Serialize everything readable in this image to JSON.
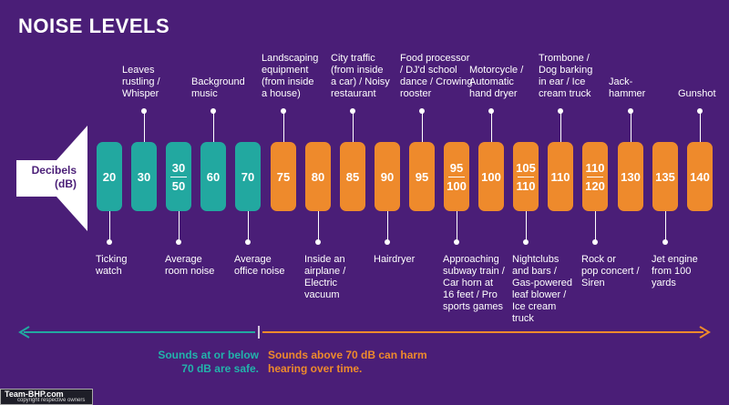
{
  "title": "NOISE LEVELS",
  "speaker_label": "Decibels\n(dB)",
  "colors": {
    "background": "#4a1e77",
    "safe": "#22a8a0",
    "harm": "#ee8a2c",
    "text": "#ffffff"
  },
  "levels": [
    {
      "value": "20",
      "zone": "safe",
      "label": "Ticking\nwatch",
      "label_pos": "bottom"
    },
    {
      "value": "30",
      "zone": "safe",
      "label": "Leaves\nrustling /\nWhisper",
      "label_pos": "top"
    },
    {
      "value": "30/50",
      "zone": "safe",
      "label": "Average\nroom noise",
      "label_pos": "bottom"
    },
    {
      "value": "60",
      "zone": "safe",
      "label": "Background\nmusic",
      "label_pos": "top"
    },
    {
      "value": "70",
      "zone": "safe",
      "label": "Average\noffice noise",
      "label_pos": "bottom"
    },
    {
      "value": "75",
      "zone": "harm",
      "label": "Landscaping\nequipment\n(from inside\na house)",
      "label_pos": "top"
    },
    {
      "value": "80",
      "zone": "harm",
      "label": "Inside an\nairplane /\nElectric\nvacuum",
      "label_pos": "bottom"
    },
    {
      "value": "85",
      "zone": "harm",
      "label": "City traffic\n(from inside\na car) / Noisy\nrestaurant",
      "label_pos": "top"
    },
    {
      "value": "90",
      "zone": "harm",
      "label": "Hairdryer",
      "label_pos": "bottom"
    },
    {
      "value": "95",
      "zone": "harm",
      "label": "Food processor\n/ DJ'd school\ndance / Crowing\nrooster",
      "label_pos": "top"
    },
    {
      "value": "95/100",
      "zone": "harm",
      "label": "Approaching\nsubway train /\nCar horn at\n16 feet / Pro\nsports games",
      "label_pos": "bottom"
    },
    {
      "value": "100",
      "zone": "harm",
      "label": "Motorcycle /\nAutomatic\nhand dryer",
      "label_pos": "top"
    },
    {
      "value": "105/110",
      "zone": "harm",
      "label": "Nightclubs\nand bars /\nGas-powered\nleaf blower /\nIce cream\ntruck",
      "label_pos": "bottom"
    },
    {
      "value": "110",
      "zone": "harm",
      "label": "Trombone /\nDog barking\nin ear / Ice\ncream truck",
      "label_pos": "top"
    },
    {
      "value": "110/120",
      "zone": "harm",
      "label": "Rock or\npop concert /\nSiren",
      "label_pos": "bottom"
    },
    {
      "value": "130",
      "zone": "harm",
      "label": "Jack-\nhammer",
      "label_pos": "top"
    },
    {
      "value": "135",
      "zone": "harm",
      "label": "Jet engine\nfrom 100\nyards",
      "label_pos": "bottom"
    },
    {
      "value": "140",
      "zone": "harm",
      "label": "Gunshot",
      "label_pos": "top"
    }
  ],
  "footer": {
    "safe_text": "Sounds at or below\n70 dB are safe.",
    "harm_text": "Sounds above 70 dB can harm\nhearing over time."
  },
  "watermark": {
    "brand": "Team-BHP.com",
    "note": "copyright respective owners"
  }
}
